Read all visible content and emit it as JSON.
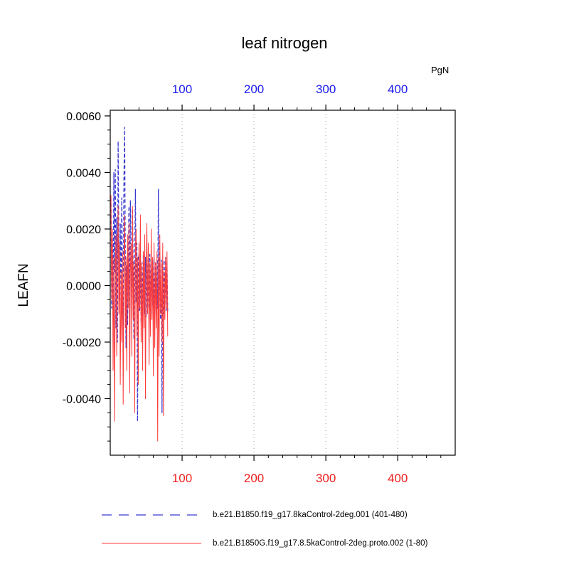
{
  "page": {
    "background": "#ffffff"
  },
  "chart_data": {
    "type": "line",
    "title": "leaf nitrogen",
    "ylabel": "LEAFN",
    "xlabel": "",
    "top_axis_label": "PgN",
    "xlim": [
      0,
      480
    ],
    "ylim": [
      -0.006,
      0.0062
    ],
    "x_ticks": [
      100,
      200,
      300,
      400
    ],
    "x_minor_step": 20,
    "y_ticks": [
      0.006,
      0.004,
      0.002,
      0,
      -0.002,
      -0.004
    ],
    "y_tick_labels": [
      "0.0060",
      "0.0040",
      "0.0020",
      "0.0000",
      "-0.0020",
      "-0.0040"
    ],
    "grid": {
      "vertical_dotted_at_x_ticks": true,
      "color": "#9a9a9a"
    },
    "axis_label_colors": {
      "top": "#1a1aee",
      "bottom": "#f02020",
      "left": "#000000"
    },
    "frame_color": "#000000",
    "legend_position": "bottom",
    "series": [
      {
        "name": "b.e21.B1850.f19_g17.8kaControl-2deg.001 (401-480)",
        "color": "#3939cf",
        "style": "dashed",
        "x_start": 1,
        "x_step": 1,
        "values": [
          0.0031,
          -0.0008,
          0.0018,
          -0.0012,
          0.004,
          0.0005,
          0.0041,
          -0.0015,
          0.0024,
          -0.002,
          0.0051,
          0.0012,
          -0.0005,
          0.0022,
          -0.001,
          0.0031,
          0.0001,
          -0.0016,
          0.0036,
          0.0056,
          0.001,
          -0.0022,
          0.0007,
          -0.0014,
          0.0004,
          0.0028,
          -0.0011,
          0.003,
          0.0014,
          -0.0013,
          0.0027,
          0.0005,
          -0.0019,
          0.0009,
          0.0034,
          -0.0006,
          0.0015,
          -0.0048,
          0.001,
          0.0011,
          -0.0009,
          0.001,
          -0.0013,
          0.0008,
          -0.0012,
          0.0011,
          0.0001,
          -0.001,
          0.001,
          -0.0011,
          0.0009,
          -0.0008,
          0.001,
          -0.0009,
          0.0011,
          -0.001,
          0.0008,
          -0.0007,
          0.0009,
          -0.0008,
          0.001,
          -0.0009,
          0.0008,
          -0.001,
          0.0009,
          -0.0008,
          0.0034,
          -0.0005,
          0.001,
          -0.0012,
          0.0009,
          -0.0045,
          0.0008,
          -0.001,
          0.0009,
          -0.0008,
          0.001,
          -0.0009,
          0.0008,
          -0.001
        ]
      },
      {
        "name": "b.e21.B1850G.f19_g17.8.5kaControl-2deg.proto.002 (1-80)",
        "color": "#fb3b3b",
        "style": "solid",
        "x_start": 1,
        "x_step": 1,
        "values": [
          0.0032,
          -0.0005,
          0.002,
          -0.003,
          0.001,
          -0.0048,
          0.0005,
          0.0018,
          -0.0025,
          0.0008,
          0.0028,
          -0.001,
          0.0015,
          -0.0035,
          0.0005,
          -0.002,
          0.0012,
          -0.0042,
          0.0008,
          0.0025,
          -0.0015,
          0.001,
          -0.003,
          0.0018,
          -0.0008,
          0.0022,
          -0.0038,
          0.0005,
          0.0015,
          -0.0025,
          0.0028,
          -0.0012,
          0.0008,
          -0.0045,
          0.0012,
          0.002,
          -0.0018,
          0.001,
          -0.0035,
          0.0015,
          -0.0008,
          0.0025,
          -0.002,
          0.0008,
          -0.003,
          0.0012,
          -0.0015,
          0.0018,
          -0.004,
          0.0005,
          0.0022,
          -0.001,
          0.0015,
          -0.0028,
          0.0008,
          -0.0018,
          0.002,
          -0.0012,
          0.001,
          -0.0032,
          0.0015,
          -0.0022,
          0.0008,
          -0.0015,
          0.0012,
          -0.0055,
          0.001,
          -0.0025,
          0.0018,
          -0.001,
          0.0008,
          -0.002,
          0.0015,
          -0.0046,
          0.0005,
          -0.0012,
          0.001,
          -0.0008,
          0.0012,
          -0.0018
        ]
      }
    ]
  }
}
